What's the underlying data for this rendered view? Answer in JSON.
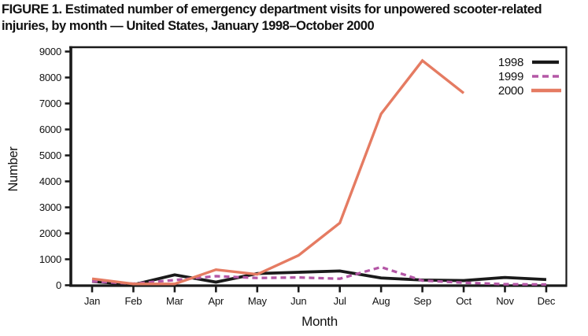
{
  "chart_data": {
    "type": "line",
    "title": "FIGURE 1. Estimated number of emergency department visits for unpowered scooter-related injuries, by month — United States, January 1998–October 2000",
    "xlabel": "Month",
    "ylabel": "Number",
    "categories": [
      "Jan",
      "Feb",
      "Mar",
      "Apr",
      "May",
      "Jun",
      "Jul",
      "Aug",
      "Sep",
      "Oct",
      "Nov",
      "Dec"
    ],
    "ylim": [
      0,
      9000
    ],
    "ytick_step": 1000,
    "grid": false,
    "legend_position": "top-right-inside",
    "axis_color": "#1a1a1a",
    "series": [
      {
        "name": "1998",
        "color": "#1a1a1a",
        "style": "solid",
        "values": [
          150,
          20,
          400,
          120,
          450,
          500,
          550,
          280,
          200,
          180,
          300,
          220
        ]
      },
      {
        "name": "1999",
        "color": "#b457a6",
        "style": "dashed",
        "values": [
          150,
          60,
          200,
          350,
          280,
          300,
          250,
          700,
          180,
          100,
          40,
          30
        ]
      },
      {
        "name": "2000",
        "color": "#e57b62",
        "style": "solid",
        "values": [
          250,
          50,
          50,
          600,
          420,
          1150,
          2400,
          6600,
          8650,
          7400,
          null,
          null
        ]
      }
    ]
  }
}
